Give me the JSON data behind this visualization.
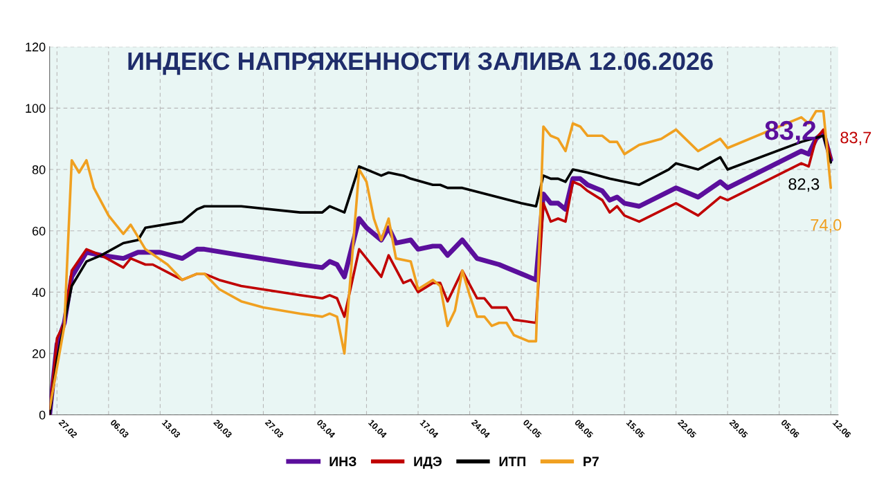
{
  "chart_data": {
    "type": "line",
    "title": "ИНДЕКС НАПРЯЖЕННОСТИ ЗАЛИВА 12.06.2026",
    "xlim": [
      "2026-02-26",
      "2026-06-13"
    ],
    "ylim": [
      0,
      120
    ],
    "yticks": [
      0,
      20,
      40,
      60,
      80,
      100,
      120
    ],
    "xticks": [
      {
        "value": "2026-02-27",
        "label": "27.02"
      },
      {
        "value": "2026-03-06",
        "label": "06.03"
      },
      {
        "value": "2026-03-13",
        "label": "13.03"
      },
      {
        "value": "2026-03-20",
        "label": "20.03"
      },
      {
        "value": "2026-03-27",
        "label": "27.03"
      },
      {
        "value": "2026-04-03",
        "label": "03.04"
      },
      {
        "value": "2026-04-10",
        "label": "10.04"
      },
      {
        "value": "2026-04-17",
        "label": "17.04"
      },
      {
        "value": "2026-04-24",
        "label": "24.04"
      },
      {
        "value": "2026-05-01",
        "label": "01.05"
      },
      {
        "value": "2026-05-08",
        "label": "08.05"
      },
      {
        "value": "2026-05-15",
        "label": "15.05"
      },
      {
        "value": "2026-05-22",
        "label": "22.05"
      },
      {
        "value": "2026-05-29",
        "label": "29.05"
      },
      {
        "value": "2026-06-05",
        "label": "05.06"
      },
      {
        "value": "2026-06-12",
        "label": "12.06"
      }
    ],
    "grid": true,
    "legend": "bottom",
    "marker": "none",
    "line_style": "solid",
    "series": [
      {
        "name": "ИНЗ",
        "color": "#5b0f9c",
        "x": [
          "2026-02-26",
          "2026-02-27",
          "2026-02-28",
          "2026-03-01",
          "2026-03-03",
          "2026-03-05",
          "2026-03-08",
          "2026-03-10",
          "2026-03-13",
          "2026-03-16",
          "2026-03-18",
          "2026-03-19",
          "2026-03-24",
          "2026-04-01",
          "2026-04-04",
          "2026-04-05",
          "2026-04-06",
          "2026-04-07",
          "2026-04-09",
          "2026-04-10",
          "2026-04-12",
          "2026-04-13",
          "2026-04-14",
          "2026-04-16",
          "2026-04-17",
          "2026-04-19",
          "2026-04-20",
          "2026-04-21",
          "2026-04-23",
          "2026-04-25",
          "2026-04-28",
          "2026-04-29",
          "2026-05-01",
          "2026-05-03",
          "2026-05-04",
          "2026-05-05",
          "2026-05-06",
          "2026-05-07",
          "2026-05-08",
          "2026-05-09",
          "2026-05-10",
          "2026-05-12",
          "2026-05-13",
          "2026-05-14",
          "2026-05-15",
          "2026-05-17",
          "2026-05-22",
          "2026-05-25",
          "2026-05-28",
          "2026-05-29",
          "2026-06-08",
          "2026-06-09",
          "2026-06-10",
          "2026-06-11",
          "2026-06-12"
        ],
        "values": [
          0,
          23,
          30,
          45,
          53,
          52,
          51,
          53,
          53,
          51,
          54,
          54,
          52,
          49,
          48,
          50,
          49,
          45,
          64,
          61,
          57,
          61,
          56,
          57,
          54,
          55,
          55,
          52,
          57,
          51,
          49,
          48,
          46,
          44,
          72,
          69,
          69,
          67,
          77,
          77,
          75,
          73,
          70,
          71,
          69,
          68,
          74,
          71,
          76,
          74,
          86,
          85,
          90,
          92,
          83.2
        ],
        "value_labels": [
          null,
          null,
          null,
          null,
          null,
          null,
          null,
          null,
          null,
          null,
          null,
          null,
          null,
          null,
          null,
          null,
          null,
          null,
          null,
          null,
          null,
          null,
          null,
          null,
          null,
          null,
          null,
          null,
          null,
          null,
          null,
          null,
          null,
          null,
          null,
          null,
          null,
          null,
          null,
          null,
          null,
          null,
          null,
          null,
          null,
          null,
          null,
          null,
          null,
          null,
          null,
          null,
          null,
          null,
          "83,2"
        ]
      },
      {
        "name": "ИДЭ",
        "color": "#c00000",
        "x": [
          "2026-02-26",
          "2026-02-27",
          "2026-02-28",
          "2026-03-01",
          "2026-03-03",
          "2026-03-05",
          "2026-03-08",
          "2026-03-09",
          "2026-03-11",
          "2026-03-12",
          "2026-03-16",
          "2026-03-18",
          "2026-03-19",
          "2026-03-21",
          "2026-03-24",
          "2026-04-01",
          "2026-04-04",
          "2026-04-05",
          "2026-04-06",
          "2026-04-07",
          "2026-04-09",
          "2026-04-12",
          "2026-04-13",
          "2026-04-15",
          "2026-04-16",
          "2026-04-17",
          "2026-04-19",
          "2026-04-20",
          "2026-04-21",
          "2026-04-23",
          "2026-04-25",
          "2026-04-26",
          "2026-04-27",
          "2026-04-29",
          "2026-04-30",
          "2026-05-03",
          "2026-05-04",
          "2026-05-05",
          "2026-05-06",
          "2026-05-07",
          "2026-05-08",
          "2026-05-09",
          "2026-05-10",
          "2026-05-12",
          "2026-05-13",
          "2026-05-14",
          "2026-05-15",
          "2026-05-17",
          "2026-05-22",
          "2026-05-25",
          "2026-05-28",
          "2026-05-29",
          "2026-06-08",
          "2026-06-09",
          "2026-06-10",
          "2026-06-11",
          "2026-06-12"
        ],
        "values": [
          0,
          25,
          30,
          47,
          54,
          52,
          48,
          51,
          49,
          49,
          44,
          46,
          46,
          44,
          42,
          39,
          38,
          39,
          38,
          32,
          54,
          45,
          52,
          43,
          44,
          40,
          43,
          43,
          37,
          47,
          38,
          38,
          35,
          35,
          31,
          30,
          69,
          63,
          64,
          63,
          76,
          75,
          73,
          70,
          66,
          68,
          65,
          63,
          69,
          65,
          71,
          70,
          82,
          81,
          90,
          93,
          83.7
        ],
        "value_labels": [
          null,
          null,
          null,
          null,
          null,
          null,
          null,
          null,
          null,
          null,
          null,
          null,
          null,
          null,
          null,
          null,
          null,
          null,
          null,
          null,
          null,
          null,
          null,
          null,
          null,
          null,
          null,
          null,
          null,
          null,
          null,
          null,
          null,
          null,
          null,
          null,
          null,
          null,
          null,
          null,
          null,
          null,
          null,
          null,
          null,
          null,
          null,
          null,
          null,
          null,
          null,
          null,
          null,
          null,
          null,
          null,
          "83,7"
        ]
      },
      {
        "name": "ИТП",
        "color": "#000000",
        "x": [
          "2026-02-26",
          "2026-02-27",
          "2026-02-28",
          "2026-03-01",
          "2026-03-03",
          "2026-03-05",
          "2026-03-08",
          "2026-03-10",
          "2026-03-11",
          "2026-03-16",
          "2026-03-18",
          "2026-03-19",
          "2026-03-24",
          "2026-04-01",
          "2026-04-04",
          "2026-04-05",
          "2026-04-06",
          "2026-04-07",
          "2026-04-09",
          "2026-04-12",
          "2026-04-13",
          "2026-04-15",
          "2026-04-16",
          "2026-04-19",
          "2026-04-20",
          "2026-04-21",
          "2026-04-23",
          "2026-05-01",
          "2026-05-03",
          "2026-05-04",
          "2026-05-05",
          "2026-05-06",
          "2026-05-07",
          "2026-05-08",
          "2026-05-10",
          "2026-05-13",
          "2026-05-15",
          "2026-05-17",
          "2026-05-21",
          "2026-05-22",
          "2026-05-25",
          "2026-05-28",
          "2026-05-29",
          "2026-06-08",
          "2026-06-11",
          "2026-06-12"
        ],
        "values": [
          0,
          18,
          30,
          42,
          50,
          52,
          56,
          57,
          61,
          63,
          67,
          68,
          68,
          66,
          66,
          68,
          67,
          66,
          81,
          78,
          79,
          78,
          77,
          75,
          75,
          74,
          74,
          69,
          68,
          78,
          77,
          77,
          76,
          80,
          79,
          77,
          76,
          75,
          80,
          82,
          80,
          84,
          80,
          89,
          91,
          82.3
        ],
        "value_labels": [
          null,
          null,
          null,
          null,
          null,
          null,
          null,
          null,
          null,
          null,
          null,
          null,
          null,
          null,
          null,
          null,
          null,
          null,
          null,
          null,
          null,
          null,
          null,
          null,
          null,
          null,
          null,
          null,
          null,
          null,
          null,
          null,
          null,
          null,
          null,
          null,
          null,
          null,
          null,
          null,
          null,
          null,
          null,
          null,
          null,
          "82,3"
        ]
      },
      {
        "name": "Р7",
        "color": "#f0a020",
        "x": [
          "2026-02-26",
          "2026-02-28",
          "2026-03-01",
          "2026-03-02",
          "2026-03-03",
          "2026-03-04",
          "2026-03-06",
          "2026-03-08",
          "2026-03-09",
          "2026-03-11",
          "2026-03-14",
          "2026-03-16",
          "2026-03-18",
          "2026-03-19",
          "2026-03-21",
          "2026-03-24",
          "2026-03-27",
          "2026-04-01",
          "2026-04-04",
          "2026-04-05",
          "2026-04-06",
          "2026-04-07",
          "2026-04-09",
          "2026-04-10",
          "2026-04-11",
          "2026-04-12",
          "2026-04-13",
          "2026-04-14",
          "2026-04-16",
          "2026-04-17",
          "2026-04-19",
          "2026-04-20",
          "2026-04-21",
          "2026-04-22",
          "2026-04-23",
          "2026-04-24",
          "2026-04-25",
          "2026-04-26",
          "2026-04-27",
          "2026-04-28",
          "2026-04-29",
          "2026-04-30",
          "2026-05-02",
          "2026-05-03",
          "2026-05-04",
          "2026-05-05",
          "2026-05-06",
          "2026-05-07",
          "2026-05-08",
          "2026-05-09",
          "2026-05-10",
          "2026-05-12",
          "2026-05-13",
          "2026-05-14",
          "2026-05-15",
          "2026-05-17",
          "2026-05-20",
          "2026-05-22",
          "2026-05-25",
          "2026-05-28",
          "2026-05-29",
          "2026-06-08",
          "2026-06-09",
          "2026-06-10",
          "2026-06-11",
          "2026-06-12"
        ],
        "values": [
          2,
          29,
          83,
          79,
          83,
          74,
          65,
          59,
          62,
          54,
          49,
          44,
          46,
          46,
          41,
          37,
          35,
          33,
          32,
          33,
          32,
          20,
          80,
          76,
          64,
          57,
          64,
          51,
          50,
          41,
          44,
          42,
          29,
          34,
          47,
          39,
          32,
          32,
          29,
          30,
          30,
          26,
          24,
          24,
          94,
          91,
          90,
          86,
          95,
          94,
          91,
          91,
          89,
          89,
          85,
          88,
          90,
          93,
          86,
          90,
          87,
          97,
          95,
          99,
          99,
          74.0
        ],
        "value_labels": [
          null,
          null,
          null,
          null,
          null,
          null,
          null,
          null,
          null,
          null,
          null,
          null,
          null,
          null,
          null,
          null,
          null,
          null,
          null,
          null,
          null,
          null,
          null,
          null,
          null,
          null,
          null,
          null,
          null,
          null,
          null,
          null,
          null,
          null,
          null,
          null,
          null,
          null,
          null,
          null,
          null,
          null,
          null,
          null,
          null,
          null,
          null,
          null,
          null,
          null,
          null,
          null,
          null,
          null,
          null,
          null,
          null,
          null,
          null,
          null,
          null,
          null,
          null,
          null,
          null,
          "74,0"
        ]
      }
    ]
  }
}
